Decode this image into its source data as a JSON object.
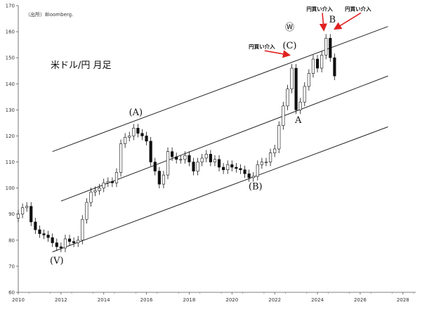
{
  "chart_data": {
    "type": "candlestick",
    "title": "米ドル/円 月足",
    "source": "（出所）Bloomberg.",
    "xlabel": "",
    "ylabel": "",
    "xlim": [
      2010,
      2028.6
    ],
    "ylim": [
      60,
      170
    ],
    "x_ticks": [
      "2010",
      "2012",
      "2014",
      "2016",
      "2018",
      "2020",
      "2022",
      "2024",
      "2026",
      "2028"
    ],
    "y_ticks": [
      "60",
      "70",
      "80",
      "90",
      "100",
      "110",
      "120",
      "130",
      "140",
      "150",
      "160",
      "170"
    ],
    "grid": false,
    "series": [
      {
        "values": [
          [
            2010.0,
            90.0
          ],
          [
            2010.2,
            92.5
          ],
          [
            2010.4,
            93.0
          ],
          [
            2010.6,
            87.0
          ],
          [
            2010.8,
            84.0
          ],
          [
            2011.0,
            82.5
          ],
          [
            2011.2,
            82.0
          ],
          [
            2011.4,
            81.0
          ],
          [
            2011.6,
            79.0
          ],
          [
            2011.8,
            77.5
          ],
          [
            2012.0,
            77.0
          ],
          [
            2012.2,
            80.5
          ],
          [
            2012.4,
            79.5
          ],
          [
            2012.6,
            79.0
          ],
          [
            2012.8,
            80.0
          ],
          [
            2013.0,
            88.0
          ],
          [
            2013.2,
            94.5
          ],
          [
            2013.4,
            98.5
          ],
          [
            2013.6,
            99.0
          ],
          [
            2013.8,
            100.0
          ],
          [
            2014.0,
            102.0
          ],
          [
            2014.2,
            102.5
          ],
          [
            2014.4,
            102.0
          ],
          [
            2014.6,
            106.0
          ],
          [
            2014.8,
            117.0
          ],
          [
            2015.0,
            119.5
          ],
          [
            2015.2,
            120.0
          ],
          [
            2015.4,
            123.0
          ],
          [
            2015.6,
            121.0
          ],
          [
            2015.8,
            120.0
          ],
          [
            2016.0,
            118.0
          ],
          [
            2016.2,
            110.0
          ],
          [
            2016.4,
            106.5
          ],
          [
            2016.6,
            101.5
          ],
          [
            2016.8,
            105.0
          ],
          [
            2017.0,
            114.0
          ],
          [
            2017.2,
            112.0
          ],
          [
            2017.4,
            111.0
          ],
          [
            2017.6,
            111.0
          ],
          [
            2017.8,
            112.5
          ],
          [
            2018.0,
            110.0
          ],
          [
            2018.2,
            106.5
          ],
          [
            2018.4,
            110.0
          ],
          [
            2018.6,
            111.5
          ],
          [
            2018.8,
            113.0
          ],
          [
            2019.0,
            110.0
          ],
          [
            2019.2,
            111.0
          ],
          [
            2019.4,
            108.0
          ],
          [
            2019.6,
            107.0
          ],
          [
            2019.8,
            109.0
          ],
          [
            2020.0,
            108.0
          ],
          [
            2020.2,
            107.5
          ],
          [
            2020.4,
            107.0
          ],
          [
            2020.6,
            105.5
          ],
          [
            2020.8,
            104.0
          ],
          [
            2021.0,
            104.5
          ],
          [
            2021.2,
            109.0
          ],
          [
            2021.4,
            110.0
          ],
          [
            2021.6,
            110.0
          ],
          [
            2021.8,
            113.5
          ],
          [
            2022.0,
            115.0
          ],
          [
            2022.2,
            124.0
          ],
          [
            2022.4,
            131.5
          ],
          [
            2022.6,
            138.0
          ],
          [
            2022.8,
            146.0
          ],
          [
            2023.0,
            130.0
          ],
          [
            2023.2,
            133.0
          ],
          [
            2023.4,
            139.0
          ],
          [
            2023.6,
            144.0
          ],
          [
            2023.8,
            149.5
          ],
          [
            2024.0,
            146.0
          ],
          [
            2024.2,
            151.0
          ],
          [
            2024.4,
            157.5
          ],
          [
            2024.6,
            150.0
          ],
          [
            2024.8,
            143.0
          ]
        ]
      }
    ],
    "trend_channel": [
      {
        "x": [
          2011.6,
          2027.3
        ],
        "y": [
          114,
          162
        ]
      },
      {
        "x": [
          2012.0,
          2027.3
        ],
        "y": [
          95,
          143
        ]
      },
      {
        "x": [
          2011.6,
          2027.3
        ],
        "y": [
          75.5,
          123.5
        ]
      }
    ],
    "wave_labels": [
      {
        "text": "(Ⅴ)",
        "x": 2011.8,
        "y": 71
      },
      {
        "text": "(A)",
        "x": 2015.5,
        "y": 128
      },
      {
        "text": "(B)",
        "x": 2021.1,
        "y": 99.5
      },
      {
        "text": "Ⓦ",
        "x": 2022.7,
        "y": 160.5
      },
      {
        "text": "(C)",
        "x": 2022.7,
        "y": 153.5
      },
      {
        "text": "A",
        "x": 2023.1,
        "y": 125
      },
      {
        "text": "B",
        "x": 2024.7,
        "y": 163.5
      }
    ],
    "intervention_labels": [
      {
        "text": "円買い介入",
        "x": 2021.4,
        "y": 153.5,
        "arrow_to": [
          2022.7,
          151
        ]
      },
      {
        "text": "円買い介入",
        "x": 2024.1,
        "y": 168,
        "arrow_to": [
          2024.3,
          160.5
        ]
      },
      {
        "text": "円買い介入",
        "x": 2025.9,
        "y": 168,
        "arrow_to": [
          2024.8,
          161
        ]
      }
    ],
    "colors": {
      "candle": "#111111",
      "arrow": "#e02020",
      "line": "#222222"
    }
  }
}
